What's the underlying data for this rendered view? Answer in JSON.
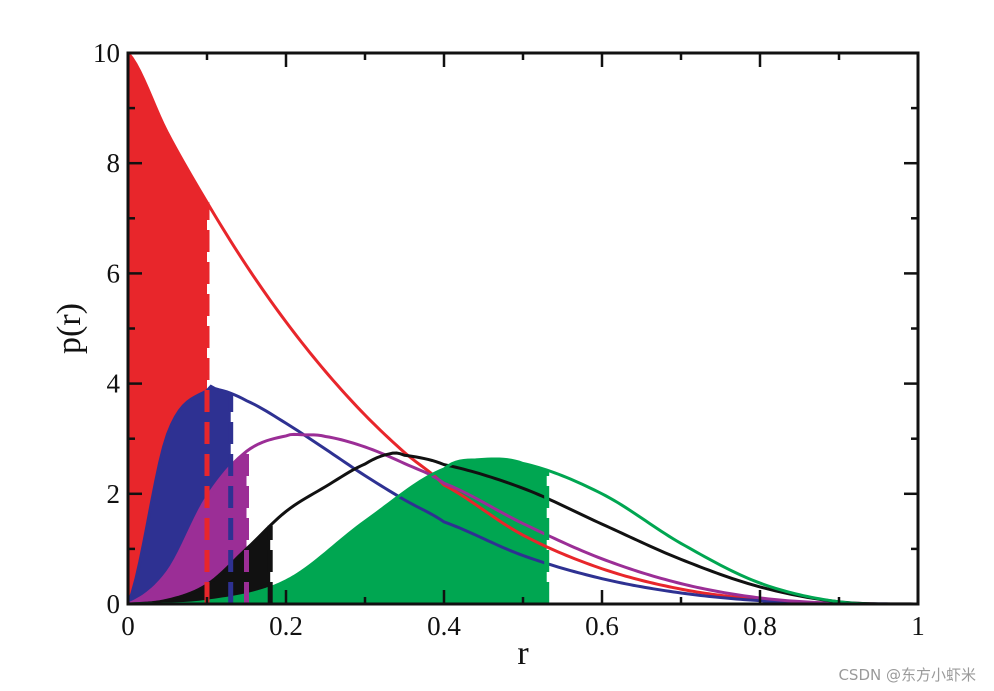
{
  "chart_data": {
    "type": "area",
    "xlabel": "r",
    "ylabel": "p(r)",
    "xlim": [
      0,
      1
    ],
    "ylim": [
      0,
      10
    ],
    "xticks": [
      0,
      0.2,
      0.4,
      0.6,
      0.8,
      1
    ],
    "xtick_labels": [
      "0",
      "0.2",
      "0.4",
      "0.6",
      "0.8",
      "1"
    ],
    "yticks": [
      0,
      2,
      4,
      6,
      8,
      10
    ],
    "ytick_labels": [
      "0",
      "2",
      "4",
      "6",
      "8",
      "10"
    ],
    "series": [
      {
        "color": "#e8262b",
        "k": 1,
        "fill_to": 0.1,
        "median": 0.1,
        "x": [
          0,
          0.05,
          0.1,
          0.15,
          0.2,
          0.25,
          0.3,
          0.35,
          0.4,
          0.5,
          0.6,
          0.7,
          0.8,
          0.9,
          1.0
        ],
        "y": [
          10,
          8.55,
          7.29,
          6.14,
          5.12,
          4.22,
          3.43,
          2.75,
          2.16,
          1.25,
          0.64,
          0.27,
          0.08,
          0.01,
          0
        ]
      },
      {
        "color": "#2e3192",
        "k": 2,
        "fill_to": 0.13,
        "median": 0.13,
        "x": [
          0,
          0.05,
          0.1,
          0.111,
          0.15,
          0.2,
          0.25,
          0.3,
          0.35,
          0.4,
          0.5,
          0.6,
          0.7,
          0.8,
          0.9,
          1.0
        ],
        "y": [
          0,
          3.08,
          3.87,
          3.9,
          3.69,
          3.28,
          2.81,
          2.33,
          1.89,
          1.49,
          0.88,
          0.46,
          0.2,
          0.06,
          0.01,
          0
        ]
      },
      {
        "color": "#9b2e96",
        "k": 3,
        "fill_to": 0.15,
        "median": 0.15,
        "x": [
          0,
          0.05,
          0.1,
          0.15,
          0.2,
          0.222,
          0.25,
          0.3,
          0.35,
          0.4,
          0.5,
          0.6,
          0.7,
          0.8,
          0.9,
          1.0
        ],
        "y": [
          0,
          0.58,
          1.94,
          2.77,
          3.05,
          3.07,
          3.04,
          2.85,
          2.55,
          2.19,
          1.46,
          0.82,
          0.37,
          0.11,
          0.01,
          0
        ]
      },
      {
        "color": "#111111",
        "k": 4,
        "fill_to": 0.18,
        "median": 0.18,
        "x": [
          0,
          0.05,
          0.1,
          0.15,
          0.2,
          0.25,
          0.3,
          0.333,
          0.35,
          0.4,
          0.5,
          0.6,
          0.7,
          0.8,
          0.9,
          1.0
        ],
        "y": [
          0,
          0.07,
          0.35,
          1.0,
          1.68,
          2.13,
          2.54,
          2.73,
          2.7,
          2.53,
          2.1,
          1.45,
          0.81,
          0.31,
          0.04,
          0
        ]
      },
      {
        "color": "#00a651",
        "k": 5,
        "fill_to": 0.53,
        "median": 0.53,
        "x": [
          0,
          0.1,
          0.2,
          0.3,
          0.4,
          0.444,
          0.5,
          0.6,
          0.7,
          0.8,
          0.9,
          1.0
        ],
        "y": [
          0,
          0.05,
          0.42,
          1.5,
          2.45,
          2.62,
          2.55,
          2.0,
          1.1,
          0.38,
          0.04,
          0
        ]
      }
    ]
  },
  "watermark": "CSDN @东方小虾米"
}
